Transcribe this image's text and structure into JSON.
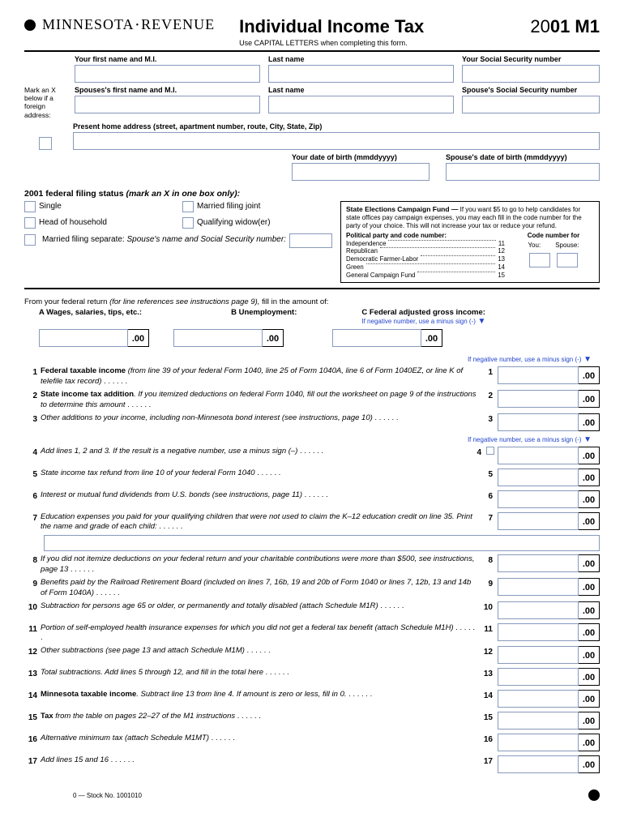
{
  "header": {
    "agency": "MINNESOTA · REVENUE",
    "title": "Individual Income Tax",
    "subtitle": "Use CAPITAL LETTERS when completing this form.",
    "year_prefix": "20",
    "form_code": "01 M1"
  },
  "name_labels": {
    "first": "Your first name and  M.I.",
    "last": "Last name",
    "ssn": "Your Social Security number",
    "spouse_first": "Spouses's  first name and  M.I.",
    "spouse_last": "Last name",
    "spouse_ssn": "Spouse's Social Security number",
    "margin_note": "Mark an X below if a foreign address:",
    "address": "Present home address (street, apartment number, route, City, State, Zip)",
    "dob": "Your date of birth (mmddyyyy)",
    "spouse_dob": "Spouse's date of birth (mmddyyyy)"
  },
  "filing": {
    "heading": "2001 federal filing status",
    "heading_em": "(mark an X in one box only):",
    "options": [
      "Single",
      "Married filing joint",
      "Head of household",
      "Qualifying widow(er)"
    ],
    "married_sep": "Married filing separate:",
    "married_sep_em": "Spouse's name and Social Security number:"
  },
  "campaign": {
    "title": "State Elections Campaign Fund —",
    "text1": "If you want $5 to go to help candidates for state offices pay campaign expenses, you may each fill in the code number for the party of your choice.  This will not increase your tax or reduce your refund.",
    "party_header": "Political party and  code number:",
    "code_header": "Code number for",
    "you": "You:",
    "spouse": "Spouse:",
    "parties": [
      {
        "name": "Independence",
        "code": "11"
      },
      {
        "name": "Republican",
        "code": "12"
      },
      {
        "name": "Democratic Farmer-Labor",
        "code": "13"
      },
      {
        "name": "Green",
        "code": "14"
      },
      {
        "name": "General Campaign Fund",
        "code": "15"
      }
    ]
  },
  "federal": {
    "intro": "From your federal return",
    "intro_em": "(for line references see instructions page 9),",
    "intro_tail": "fill in the amount of:",
    "a": "A  Wages, salaries, tips, etc.:",
    "b": "B  Unemployment:",
    "c": "C  Federal adjusted gross income:",
    "neg_note": "If negative number, use a minus sign (-)",
    "cents": ".00"
  },
  "lines": [
    {
      "n": "1",
      "bold": "Federal taxable income",
      "text": " (from line 39 of your federal Form 1040, line 25 of Form 1040A, line 6 of Form 1040EZ, or line K of telefile tax record)",
      "neg_before": true
    },
    {
      "n": "2",
      "bold": "State income tax addition",
      "text": ". If you itemized deductions on federal Form 1040, fill out the worksheet on page 9 of the instructions to determine this amount"
    },
    {
      "n": "3",
      "bold": "",
      "text": "Other additions to your income, including non-Minnesota bond interest (see instructions, page 10)",
      "neg_after": true
    },
    {
      "n": "4",
      "bold": "",
      "text": "Add lines 1, 2 and 3.  If the result is a negative number, use a minus sign (–)",
      "tiny_box": true
    },
    {
      "n": "5",
      "bold": "",
      "text": "State income tax refund from line 10 of your federal Form 1040"
    },
    {
      "n": "6",
      "bold": "",
      "text": "Interest or mutual fund dividends from U.S. bonds (see instructions, page 11)"
    },
    {
      "n": "7",
      "bold": "",
      "text": "Education expenses you paid for your qualifying children that were not used to claim the K–12 education credit on line 35. Print the name and grade of each child:",
      "child_box": true
    },
    {
      "n": "8",
      "bold": "",
      "text": "If you did not itemize deductions on your federal return and your charitable contributions were more than $500, see instructions, page 13"
    },
    {
      "n": "9",
      "bold": "",
      "text": "Benefits paid by the Railroad Retirement Board (included on lines 7, 16b, 19 and 20b of Form 1040 or lines 7, 12b, 13 and 14b of Form 1040A)"
    },
    {
      "n": "10",
      "bold": "",
      "text": "Subtraction for persons age 65 or older, or permanently and totally disabled (attach Schedule M1R)"
    },
    {
      "n": "11",
      "bold": "",
      "text": "Portion of self-employed health insurance expenses for which you did not get a federal tax benefit (attach Schedule M1H)"
    },
    {
      "n": "12",
      "bold": "",
      "text": "Other subtractions (see page 13 and attach Schedule M1M)"
    },
    {
      "n": "13",
      "bold": "",
      "text": "Total subtractions. Add lines 5 through 12, and fill in the total here"
    },
    {
      "n": "14",
      "bold": "Minnesota taxable income",
      "text": ".  Subtract line 13 from line 4. If amount is zero or less, fill in 0."
    },
    {
      "n": "15",
      "bold": "Tax",
      "text": " from the table on pages 22–27 of the M1 instructions"
    },
    {
      "n": "16",
      "bold": "",
      "text": "Alternative minimum tax (attach Schedule M1MT)"
    },
    {
      "n": "17",
      "bold": "",
      "text": "Add lines 15 and 16"
    }
  ],
  "footer": {
    "stock": "0 — Stock No. 1001010"
  },
  "colors": {
    "box_border": "#8899bb",
    "link_blue": "#2244cc"
  }
}
